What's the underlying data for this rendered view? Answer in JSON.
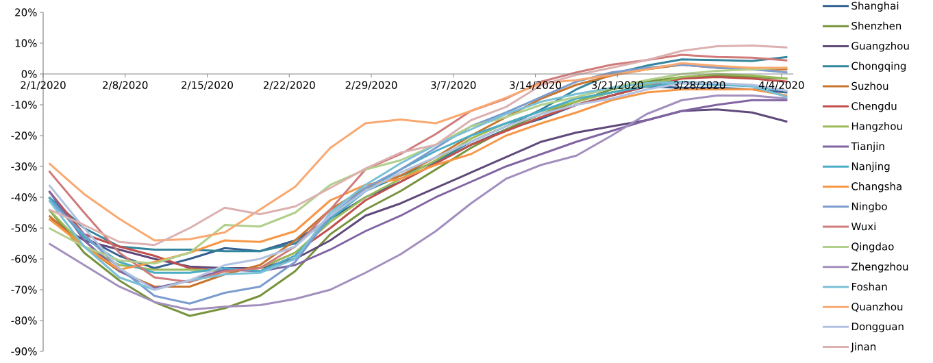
{
  "chart_data": {
    "type": "line",
    "legend": "right",
    "grid": false,
    "line_style": "solid",
    "marker": "none",
    "x": [
      "2020-02-01T12:00",
      "2020-02-04T12:00",
      "2020-02-07T12:00",
      "2020-02-10T12:00",
      "2020-02-13T12:00",
      "2020-02-16T12:00",
      "2020-02-19T12:00",
      "2020-02-22T12:00",
      "2020-02-25T12:00",
      "2020-02-28T12:00",
      "2020-03-02T12:00",
      "2020-03-05T12:00",
      "2020-03-08T12:00",
      "2020-03-11T12:00",
      "2020-03-14T12:00",
      "2020-03-17T12:00",
      "2020-03-20T12:00",
      "2020-03-23T12:00",
      "2020-03-26T12:00",
      "2020-03-29T12:00",
      "2020-04-01T12:00",
      "2020-04-04T12:00"
    ],
    "xlim": [
      "2020-02-01",
      "2020-04-05"
    ],
    "xticks": [
      {
        "value": "2020-02-01",
        "label": "2/1/2020"
      },
      {
        "value": "2020-02-08",
        "label": "2/8/2020"
      },
      {
        "value": "2020-02-15",
        "label": "2/15/2020"
      },
      {
        "value": "2020-02-22",
        "label": "2/22/2020"
      },
      {
        "value": "2020-02-29",
        "label": "2/29/2020"
      },
      {
        "value": "2020-03-07",
        "label": "3/7/2020"
      },
      {
        "value": "2020-03-14",
        "label": "3/14/2020"
      },
      {
        "value": "2020-03-21",
        "label": "3/21/2020"
      },
      {
        "value": "2020-03-28",
        "label": "3/28/2020"
      },
      {
        "value": "2020-04-04",
        "label": "4/4/2020"
      }
    ],
    "ylim": [
      -90,
      20
    ],
    "yticks": [
      {
        "value": 20,
        "label": "20%"
      },
      {
        "value": 10,
        "label": "10%"
      },
      {
        "value": 0,
        "label": "0%"
      },
      {
        "value": -10,
        "label": "-10%"
      },
      {
        "value": -20,
        "label": "-20%"
      },
      {
        "value": -30,
        "label": "-30%"
      },
      {
        "value": -40,
        "label": "-40%"
      },
      {
        "value": -50,
        "label": "-50%"
      },
      {
        "value": -60,
        "label": "-60%"
      },
      {
        "value": -70,
        "label": "-70%"
      },
      {
        "value": -80,
        "label": "-80%"
      },
      {
        "value": -90,
        "label": "-90%"
      }
    ],
    "series": [
      {
        "name": "Shanghai",
        "color": "#365f91",
        "values": [
          -40,
          -53,
          -59,
          -63,
          -60,
          -56.5,
          -57.5,
          -54,
          -47,
          -40,
          -35,
          -29,
          -23,
          -18,
          -14.5,
          -10,
          -7,
          -4,
          -4.5,
          -4.5,
          -5,
          -6
        ]
      },
      {
        "name": "Shenzhen",
        "color": "#77933c",
        "values": [
          -44,
          -58,
          -67,
          -74,
          -78.5,
          -76,
          -72,
          -64,
          -52,
          -44,
          -38,
          -31,
          -24,
          -18,
          -13,
          -9,
          -5,
          -2.5,
          -1,
          -0.5,
          -1,
          -1.5
        ]
      },
      {
        "name": "Guangzhou",
        "color": "#5f497a",
        "values": [
          -47,
          -54,
          -57,
          -60,
          -62.5,
          -63,
          -63,
          -60,
          -54,
          -46,
          -42,
          -37,
          -32,
          -27,
          -22,
          -19,
          -17,
          -15,
          -12,
          -11.5,
          -12.5,
          -15.5
        ]
      },
      {
        "name": "Chongqing",
        "color": "#31849b",
        "values": [
          -40,
          -50,
          -56,
          -57,
          -57,
          -57.5,
          -57.5,
          -55,
          -47,
          -38,
          -33,
          -28.5,
          -22,
          -17,
          -11.5,
          -5,
          0,
          2.7,
          4.7,
          4.5,
          4.2,
          5.5
        ]
      },
      {
        "name": "Suzhou",
        "color": "#c8752e",
        "values": [
          -46,
          -56,
          -64,
          -69,
          -69,
          -65,
          -62,
          -54,
          -44,
          -37,
          -33,
          -27,
          -20,
          -14,
          -8,
          -3.5,
          -0.5,
          1.5,
          3,
          2,
          1.5,
          1.5
        ]
      },
      {
        "name": "Chengdu",
        "color": "#c0504d",
        "values": [
          -38,
          -52,
          -56,
          -59,
          -63,
          -64,
          -63,
          -58,
          -50,
          -41,
          -35,
          -29,
          -23,
          -18.5,
          -14,
          -10,
          -7,
          -4,
          -1.5,
          -1,
          -1.5,
          -2.5
        ]
      },
      {
        "name": "Hangzhou",
        "color": "#9bbb59",
        "values": [
          -44,
          -56,
          -62,
          -63.5,
          -63.5,
          -64,
          -63,
          -58,
          -48,
          -40,
          -34,
          -28,
          -21,
          -16,
          -12,
          -9,
          -6,
          -3.5,
          -1,
          0,
          -0.5,
          -1.5
        ]
      },
      {
        "name": "Tianjin",
        "color": "#8064a2",
        "values": [
          -38,
          -54,
          -64,
          -69.5,
          -67,
          -63.5,
          -64,
          -62,
          -57,
          -51,
          -46,
          -40,
          -35,
          -30,
          -26,
          -22,
          -18.5,
          -15,
          -12,
          -10,
          -8.5,
          -8.5
        ]
      },
      {
        "name": "Nanjing",
        "color": "#4bacc6",
        "values": [
          -40,
          -53,
          -61,
          -64.5,
          -64.5,
          -63,
          -64,
          -59,
          -47,
          -38,
          -31,
          -25,
          -20,
          -16,
          -12,
          -8,
          -6,
          -4,
          -3,
          -3.5,
          -4,
          -5.5
        ]
      },
      {
        "name": "Changsha",
        "color": "#f79646",
        "values": [
          -47,
          -56,
          -63.5,
          -61,
          -58,
          -54,
          -54.5,
          -51,
          -41,
          -36,
          -34,
          -29.5,
          -26,
          -20,
          -16,
          -12.5,
          -8.5,
          -6,
          -5,
          -5,
          -5,
          -7
        ]
      },
      {
        "name": "Ningbo",
        "color": "#7a9cce",
        "values": [
          -41,
          -52,
          -63,
          -72,
          -74.5,
          -71,
          -69,
          -61,
          -46,
          -37,
          -31,
          -24,
          -17,
          -12.5,
          -7.5,
          -2.5,
          0.5,
          2,
          3,
          2,
          1.5,
          0.5
        ]
      },
      {
        "name": "Wuxi",
        "color": "#d07a7a",
        "values": [
          -31.5,
          -45,
          -58,
          -66,
          -67.5,
          -64,
          -63,
          -56,
          -44,
          -31,
          -26,
          -19.5,
          -12,
          -8,
          -2.5,
          0.5,
          3,
          4.5,
          6.2,
          5.5,
          5.3,
          4.4
        ]
      },
      {
        "name": "Qingdao",
        "color": "#b0cf8a",
        "values": [
          -50,
          -56,
          -60.5,
          -61.5,
          -58,
          -49,
          -49.5,
          -45,
          -36,
          -31,
          -28,
          -23,
          -17,
          -14,
          -10,
          -7.5,
          -4.5,
          -2,
          0,
          1,
          1.5,
          2
        ]
      },
      {
        "name": "Zhengzhou",
        "color": "#a28fbe",
        "values": [
          -55,
          -62,
          -69,
          -74,
          -76.5,
          -75.5,
          -75,
          -73,
          -70,
          -64.5,
          -58.5,
          -51,
          -42,
          -34,
          -29.5,
          -26.5,
          -20,
          -13,
          -8.5,
          -7,
          -7,
          -8
        ]
      },
      {
        "name": "Foshan",
        "color": "#7ac0d6",
        "values": [
          -41,
          -56,
          -66,
          -70,
          -67,
          -65,
          -64.5,
          -60,
          -45,
          -36,
          -29,
          -23,
          -18,
          -13,
          -9,
          -6.5,
          -4.5,
          -3,
          -2.5,
          -3,
          -4,
          -7.5
        ]
      },
      {
        "name": "Quanzhou",
        "color": "#f9a870",
        "values": [
          -29,
          -39,
          -47,
          -54,
          -53.6,
          -51.4,
          -44,
          -36.6,
          -24,
          -16,
          -14.8,
          -16,
          -12,
          -7.7,
          -3,
          -2,
          -0.3,
          1.5,
          3.5,
          2.6,
          2,
          2
        ]
      },
      {
        "name": "Dongguan",
        "color": "#b2c2e0",
        "values": [
          -36,
          -50,
          -63,
          -70,
          -67,
          -62,
          -60,
          -56,
          -46,
          -38,
          -32,
          -27,
          -22,
          -17,
          -13,
          -10,
          -8,
          -5,
          -3,
          -3,
          -3.5,
          -5.5
        ]
      },
      {
        "name": "Jinan",
        "color": "#dcb0b0",
        "values": [
          -44,
          -49,
          -54.5,
          -55.5,
          -50,
          -43.4,
          -45.5,
          -43,
          -37,
          -30.7,
          -25.5,
          -23,
          -15,
          -10.7,
          -3.6,
          -0.3,
          2,
          4.5,
          7.5,
          9,
          9.2,
          8.6
        ]
      }
    ]
  }
}
